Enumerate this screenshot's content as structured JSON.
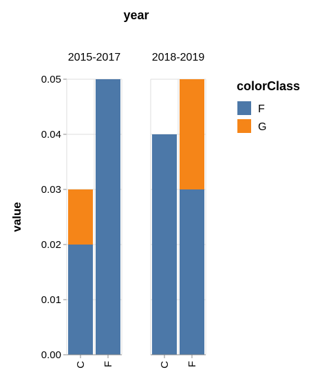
{
  "chart_data": {
    "type": "bar",
    "stacked": true,
    "facet_title": "year",
    "facets": [
      {
        "label": "2015-2017",
        "categories": [
          "C",
          "F"
        ],
        "series": [
          {
            "name": "F",
            "values": [
              0.02,
              0.05
            ]
          },
          {
            "name": "G",
            "values": [
              0.01,
              0.0
            ]
          }
        ]
      },
      {
        "label": "2018-2019",
        "categories": [
          "C",
          "F"
        ],
        "series": [
          {
            "name": "F",
            "values": [
              0.04,
              0.03
            ]
          },
          {
            "name": "G",
            "values": [
              0.0,
              0.02
            ]
          }
        ]
      }
    ],
    "ylabel": "value",
    "ylim": [
      0,
      0.05
    ],
    "yticks": [
      "0.00",
      "0.01",
      "0.02",
      "0.03",
      "0.04",
      "0.05"
    ],
    "grid": true,
    "legend": {
      "title": "colorClass",
      "placement": "right",
      "entries": [
        {
          "name": "F",
          "color": "#4c78a8"
        },
        {
          "name": "G",
          "color": "#f58518"
        }
      ]
    }
  }
}
